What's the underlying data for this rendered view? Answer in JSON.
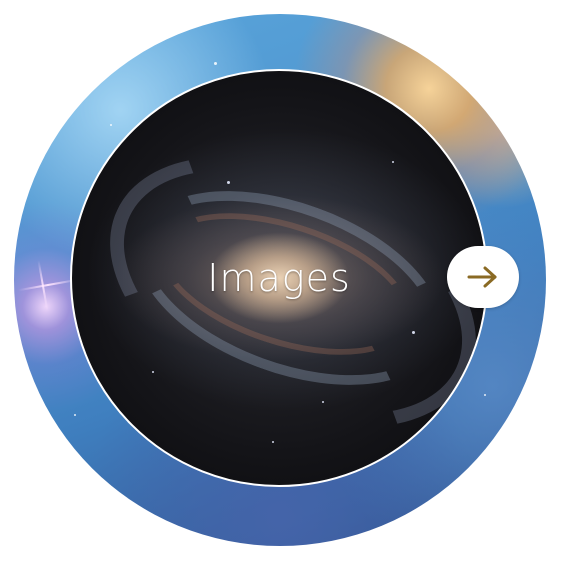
{
  "card": {
    "label": "Images"
  },
  "arrow_button": {
    "icon": "arrow-right-icon",
    "icon_color": "#8a6a24"
  },
  "colors": {
    "ring_border": "#ffffff",
    "label_text": "#ffffff",
    "button_background": "#ffffff"
  }
}
